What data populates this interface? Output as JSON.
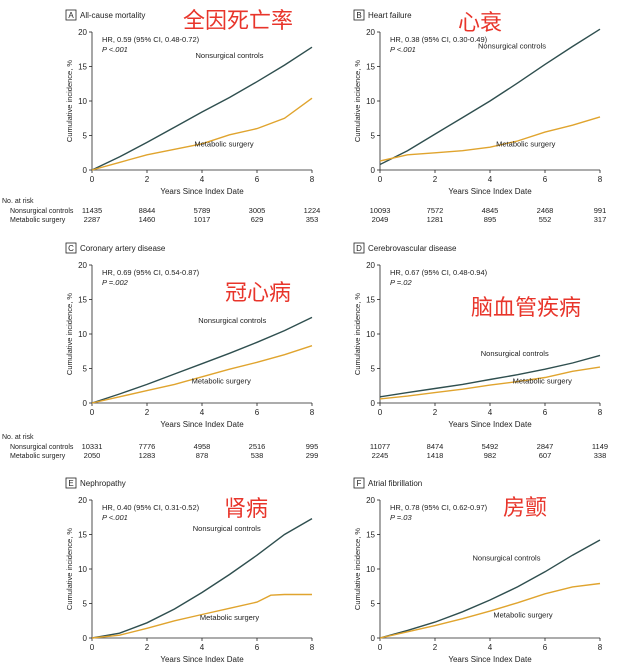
{
  "colors": {
    "nonsurgical": "#2f4f4f",
    "surgery": "#e0a42e",
    "annotation": "#e8352b",
    "frame": "#222222",
    "text": "#222222"
  },
  "common": {
    "xlabel": "Years Since Index Date",
    "ylabel": "Cumulative incidence, %",
    "no_at_risk_label": "No. at risk",
    "risk_row_labels": [
      "Nonsurgical controls",
      "Metabolic surgery"
    ]
  },
  "chart_data": [
    {
      "type": "line",
      "panel_letter": "A",
      "title": "All-cause mortality",
      "annotation": "全因死亡率",
      "hr_line": "HR, 0.59 (95% CI, 0.48-0.72)",
      "p_line": "P <.001",
      "xlim": [
        0,
        8
      ],
      "ylim": [
        0,
        20
      ],
      "x_ticks": [
        0,
        2,
        4,
        6,
        8
      ],
      "y_ticks": [
        0,
        5,
        10,
        15,
        20
      ],
      "series": [
        {
          "name": "Nonsurgical controls",
          "x": [
            0,
            1,
            2,
            3,
            4,
            5,
            6,
            7,
            8
          ],
          "y": [
            0,
            1.9,
            4.0,
            6.2,
            8.4,
            10.5,
            12.8,
            15.2,
            17.8
          ]
        },
        {
          "name": "Metabolic surgery",
          "x": [
            0,
            1,
            2,
            3,
            4,
            5,
            6,
            7,
            8
          ],
          "y": [
            0,
            1.1,
            2.2,
            3.0,
            3.8,
            5.1,
            6.0,
            7.5,
            10.4
          ]
        }
      ],
      "at_risk": {
        "x": [
          0,
          2,
          4,
          6,
          8
        ],
        "nonsurgical": [
          "11435",
          "8844",
          "5789",
          "3005",
          "1224"
        ],
        "surgery": [
          "2287",
          "1460",
          "1017",
          "629",
          "353"
        ]
      }
    },
    {
      "type": "line",
      "panel_letter": "B",
      "title": "Heart failure",
      "annotation": "心衰",
      "hr_line": "HR, 0.38 (95% CI, 0.30-0.49)",
      "p_line": "P <.001",
      "xlim": [
        0,
        8
      ],
      "ylim": [
        0,
        20
      ],
      "x_ticks": [
        0,
        2,
        4,
        6,
        8
      ],
      "y_ticks": [
        0,
        5,
        10,
        15,
        20
      ],
      "series": [
        {
          "name": "Nonsurgical controls",
          "x": [
            0,
            1,
            2,
            3,
            4,
            5,
            6,
            7,
            8
          ],
          "y": [
            0.8,
            2.8,
            5.2,
            7.6,
            10.0,
            12.6,
            15.3,
            17.9,
            20.4
          ]
        },
        {
          "name": "Metabolic surgery",
          "x": [
            0,
            1,
            2,
            3,
            4,
            5,
            6,
            7,
            8
          ],
          "y": [
            1.3,
            2.2,
            2.5,
            2.8,
            3.3,
            4.2,
            5.5,
            6.5,
            7.7
          ]
        }
      ],
      "at_risk": {
        "x": [
          0,
          2,
          4,
          6,
          8
        ],
        "nonsurgical": [
          "10093",
          "7572",
          "4845",
          "2468",
          "991"
        ],
        "surgery": [
          "2049",
          "1281",
          "895",
          "552",
          "317"
        ]
      }
    },
    {
      "type": "line",
      "panel_letter": "C",
      "title": "Coronary artery disease",
      "annotation": "冠心病",
      "hr_line": "HR, 0.69 (95% CI, 0.54-0.87)",
      "p_line": "P =.002",
      "xlim": [
        0,
        8
      ],
      "ylim": [
        0,
        20
      ],
      "x_ticks": [
        0,
        2,
        4,
        6,
        8
      ],
      "y_ticks": [
        0,
        5,
        10,
        15,
        20
      ],
      "series": [
        {
          "name": "Nonsurgical controls",
          "x": [
            0,
            1,
            2,
            3,
            4,
            5,
            6,
            7,
            8
          ],
          "y": [
            0,
            1.3,
            2.7,
            4.2,
            5.7,
            7.2,
            8.8,
            10.5,
            12.4
          ]
        },
        {
          "name": "Metabolic surgery",
          "x": [
            0,
            1,
            2,
            3,
            4,
            5,
            6,
            7,
            8
          ],
          "y": [
            0,
            0.9,
            1.8,
            2.7,
            3.8,
            4.9,
            5.9,
            7.0,
            8.3
          ]
        }
      ],
      "at_risk": {
        "x": [
          0,
          2,
          4,
          6,
          8
        ],
        "nonsurgical": [
          "10331",
          "7776",
          "4958",
          "2516",
          "995"
        ],
        "surgery": [
          "2050",
          "1283",
          "878",
          "538",
          "299"
        ]
      }
    },
    {
      "type": "line",
      "panel_letter": "D",
      "title": "Cerebrovascular disease",
      "annotation": "脑血管疾病",
      "hr_line": "HR, 0.67 (95% CI, 0.48-0.94)",
      "p_line": "P =.02",
      "xlim": [
        0,
        8
      ],
      "ylim": [
        0,
        20
      ],
      "x_ticks": [
        0,
        2,
        4,
        6,
        8
      ],
      "y_ticks": [
        0,
        5,
        10,
        15,
        20
      ],
      "series": [
        {
          "name": "Nonsurgical controls",
          "x": [
            0,
            1,
            2,
            3,
            4,
            5,
            6,
            7,
            8
          ],
          "y": [
            0.9,
            1.5,
            2.1,
            2.7,
            3.4,
            4.1,
            4.9,
            5.8,
            6.9
          ]
        },
        {
          "name": "Metabolic surgery",
          "x": [
            0,
            1,
            2,
            3,
            4,
            5,
            6,
            7,
            8
          ],
          "y": [
            0.6,
            1.0,
            1.5,
            2.0,
            2.6,
            3.1,
            3.7,
            4.6,
            5.2
          ]
        }
      ],
      "at_risk": {
        "x": [
          0,
          2,
          4,
          6,
          8
        ],
        "nonsurgical": [
          "11077",
          "8474",
          "5492",
          "2847",
          "1149"
        ],
        "surgery": [
          "2245",
          "1418",
          "982",
          "607",
          "338"
        ]
      }
    },
    {
      "type": "line",
      "panel_letter": "E",
      "title": "Nephropathy",
      "annotation": "肾病",
      "hr_line": "HR, 0.40 (95% CI, 0.31-0.52)",
      "p_line": "P <.001",
      "xlim": [
        0,
        8
      ],
      "ylim": [
        0,
        20
      ],
      "x_ticks": [
        0,
        2,
        4,
        6,
        8
      ],
      "y_ticks": [
        0,
        5,
        10,
        15,
        20
      ],
      "series": [
        {
          "name": "Nonsurgical controls",
          "x": [
            0,
            1,
            2,
            3,
            4,
            5,
            6,
            7,
            8
          ],
          "y": [
            0,
            0.7,
            2.2,
            4.2,
            6.6,
            9.2,
            12.0,
            15.0,
            17.3
          ]
        },
        {
          "name": "Metabolic surgery",
          "x": [
            0,
            1,
            2,
            3,
            4,
            5,
            6,
            6.5,
            7,
            8
          ],
          "y": [
            0,
            0.4,
            1.4,
            2.5,
            3.4,
            4.3,
            5.2,
            6.2,
            6.3,
            6.3
          ]
        }
      ]
    },
    {
      "type": "line",
      "panel_letter": "F",
      "title": "Atrial fibrillation",
      "annotation": "房颤",
      "hr_line": "HR, 0.78 (95% CI, 0.62-0.97)",
      "p_line": "P =.03",
      "xlim": [
        0,
        8
      ],
      "ylim": [
        0,
        20
      ],
      "x_ticks": [
        0,
        2,
        4,
        6,
        8
      ],
      "y_ticks": [
        0,
        5,
        10,
        15,
        20
      ],
      "series": [
        {
          "name": "Nonsurgical controls",
          "x": [
            0,
            1,
            2,
            3,
            4,
            5,
            6,
            7,
            8
          ],
          "y": [
            0,
            1.1,
            2.3,
            3.8,
            5.5,
            7.4,
            9.6,
            12.0,
            14.2
          ]
        },
        {
          "name": "Metabolic surgery",
          "x": [
            0,
            1,
            2,
            3,
            4,
            5,
            6,
            7,
            8
          ],
          "y": [
            0,
            0.9,
            1.8,
            2.8,
            3.9,
            5.1,
            6.4,
            7.4,
            7.9
          ]
        }
      ]
    }
  ]
}
